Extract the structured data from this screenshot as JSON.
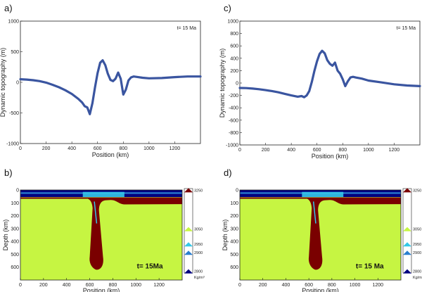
{
  "panel_labels": [
    "a)",
    "b)",
    "c)",
    "d)"
  ],
  "chart_data": [
    {
      "type": "line",
      "panel": "a)",
      "annotation": "t= 15 Ma",
      "xlabel": "Position (km)",
      "ylabel": "Dynamic topography (m)",
      "xlim": [
        0,
        1400
      ],
      "ylim": [
        -1000,
        1000
      ],
      "xticks": [
        0,
        200,
        400,
        600,
        800,
        1000,
        1200
      ],
      "yticks": [
        -1000,
        -500,
        0,
        500,
        1000
      ],
      "color": "#3a55a0",
      "x": [
        0,
        50,
        100,
        150,
        200,
        250,
        300,
        350,
        400,
        450,
        480,
        500,
        520,
        540,
        560,
        580,
        600,
        620,
        640,
        660,
        680,
        700,
        720,
        740,
        760,
        780,
        800,
        820,
        840,
        860,
        880,
        900,
        950,
        1000,
        1100,
        1200,
        1300,
        1400
      ],
      "y": [
        50,
        45,
        35,
        20,
        -5,
        -40,
        -80,
        -130,
        -190,
        -270,
        -330,
        -390,
        -410,
        -520,
        -340,
        -80,
        150,
        320,
        360,
        280,
        140,
        40,
        20,
        60,
        160,
        60,
        -200,
        -120,
        30,
        80,
        95,
        90,
        75,
        65,
        70,
        85,
        95,
        95
      ]
    },
    {
      "type": "line",
      "panel": "c)",
      "annotation": "t= 15 Ma",
      "xlabel": "Position (km)",
      "ylabel": "Dynamic topography (m)",
      "xlim": [
        0,
        1400
      ],
      "ylim": [
        -1000,
        1000
      ],
      "xticks": [
        0,
        200,
        400,
        600,
        800,
        1000,
        1200
      ],
      "yticks": [
        -1000,
        -800,
        -600,
        -400,
        -200,
        0,
        200,
        400,
        600,
        800,
        1000
      ],
      "color": "#3a55a0",
      "x": [
        0,
        50,
        100,
        150,
        200,
        250,
        300,
        350,
        400,
        450,
        480,
        500,
        520,
        540,
        560,
        580,
        600,
        620,
        640,
        660,
        680,
        700,
        720,
        740,
        760,
        780,
        800,
        820,
        840,
        860,
        880,
        900,
        950,
        1000,
        1100,
        1200,
        1300,
        1400
      ],
      "y": [
        -80,
        -82,
        -90,
        -100,
        -115,
        -130,
        -150,
        -175,
        -200,
        -220,
        -210,
        -230,
        -200,
        -130,
        20,
        200,
        350,
        470,
        520,
        480,
        370,
        310,
        280,
        330,
        200,
        150,
        60,
        -50,
        30,
        90,
        100,
        90,
        70,
        40,
        10,
        -20,
        -40,
        -50
      ]
    },
    {
      "type": "heatmap",
      "panel": "b)",
      "annotation": "t= 15Ma",
      "xlabel": "Position (km)",
      "ylabel": "Depth (km)",
      "xlim": [
        0,
        1400
      ],
      "ylim": [
        0,
        700
      ],
      "xticks": [
        0,
        200,
        400,
        600,
        800,
        1000,
        1200
      ],
      "yticks": [
        0,
        100,
        200,
        300,
        400,
        500,
        600
      ],
      "colorbar": {
        "unit": "Kg/m³",
        "ticks": [
          3250,
          3050,
          2950,
          2900,
          2800
        ],
        "colors": [
          "#7a0000",
          "#c6f542",
          "#35c8e8",
          "#2a7fd0",
          "#000080"
        ]
      }
    },
    {
      "type": "heatmap",
      "panel": "d)",
      "annotation": "t= 15 Ma",
      "xlabel": "Position (km)",
      "ylabel": "Depth (km)",
      "xlim": [
        0,
        1400
      ],
      "ylim": [
        0,
        700
      ],
      "xticks": [
        0,
        200,
        400,
        600,
        800,
        1000,
        1200
      ],
      "yticks": [
        0,
        100,
        200,
        300,
        400,
        500,
        600
      ],
      "colorbar": {
        "unit": "Kg/m³",
        "ticks": [
          3250,
          3050,
          2950,
          2900,
          2800
        ],
        "colors": [
          "#7a0000",
          "#c6f542",
          "#35c8e8",
          "#2a7fd0",
          "#000080"
        ]
      }
    }
  ]
}
